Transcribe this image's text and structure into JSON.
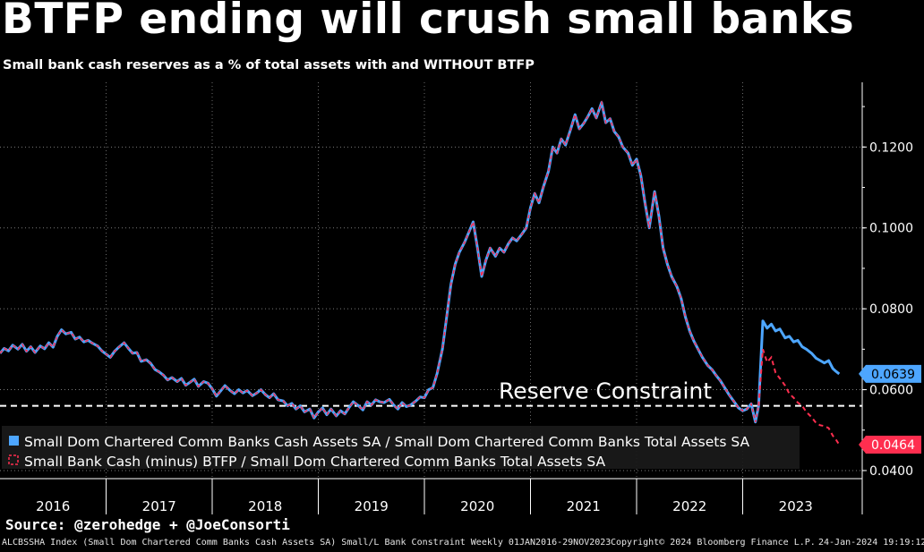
{
  "title": "BTFP ending will crush small banks",
  "subtitle": "Small bank cash reserves as a % of total assets with and WITHOUT BTFP",
  "source": "Source: @zerohedge + @JoeConsorti",
  "footer": {
    "description": "ALCBSSHA Index (Small Dom Chartered Comm Banks Cash Assets SA) Small/L Bank Constraint  Weekly 01JAN2016-29NOV2023",
    "copyright": "Copyright© 2024 Bloomberg Finance L.P.",
    "timestamp": "24-Jan-2024 19:19:12"
  },
  "chart_data": {
    "type": "line",
    "title": "BTFP ending will crush small banks",
    "x_ticks": [
      "2016",
      "2017",
      "2018",
      "2019",
      "2020",
      "2021",
      "2022",
      "2023"
    ],
    "xlim": [
      2016.0,
      2024.0
    ],
    "ylim": [
      0.038,
      0.136
    ],
    "y_ticks": [
      "0.0400",
      "0.0600",
      "0.0800",
      "0.1000",
      "0.1200"
    ],
    "grid": true,
    "legend_position": "bottom-left",
    "series": [
      {
        "name": "Small Dom Chartered Comm Banks Cash Assets SA / Small Dom Chartered Comm Banks Total Assets SA",
        "color": "#4da6ff",
        "style": "solid",
        "last_value_label": "0.0639",
        "points": [
          [
            2016.0,
            0.069
          ],
          [
            2016.04,
            0.0702
          ],
          [
            2016.08,
            0.0696
          ],
          [
            2016.12,
            0.071
          ],
          [
            2016.17,
            0.07
          ],
          [
            2016.21,
            0.0712
          ],
          [
            2016.25,
            0.0695
          ],
          [
            2016.29,
            0.0706
          ],
          [
            2016.33,
            0.0692
          ],
          [
            2016.38,
            0.0708
          ],
          [
            2016.42,
            0.0701
          ],
          [
            2016.46,
            0.0716
          ],
          [
            2016.5,
            0.0705
          ],
          [
            2016.54,
            0.0732
          ],
          [
            2016.58,
            0.0748
          ],
          [
            2016.62,
            0.0738
          ],
          [
            2016.67,
            0.0742
          ],
          [
            2016.71,
            0.0725
          ],
          [
            2016.75,
            0.073
          ],
          [
            2016.79,
            0.0718
          ],
          [
            2016.83,
            0.0722
          ],
          [
            2016.87,
            0.0715
          ],
          [
            2016.92,
            0.0708
          ],
          [
            2016.96,
            0.0696
          ],
          [
            2017.0,
            0.0688
          ],
          [
            2017.04,
            0.068
          ],
          [
            2017.08,
            0.0695
          ],
          [
            2017.12,
            0.0705
          ],
          [
            2017.17,
            0.0716
          ],
          [
            2017.21,
            0.0702
          ],
          [
            2017.25,
            0.069
          ],
          [
            2017.29,
            0.0692
          ],
          [
            2017.33,
            0.067
          ],
          [
            2017.38,
            0.0674
          ],
          [
            2017.42,
            0.0665
          ],
          [
            2017.46,
            0.065
          ],
          [
            2017.5,
            0.0644
          ],
          [
            2017.54,
            0.0636
          ],
          [
            2017.58,
            0.0624
          ],
          [
            2017.62,
            0.063
          ],
          [
            2017.67,
            0.062
          ],
          [
            2017.71,
            0.0628
          ],
          [
            2017.75,
            0.0611
          ],
          [
            2017.79,
            0.0618
          ],
          [
            2017.83,
            0.0626
          ],
          [
            2017.87,
            0.0608
          ],
          [
            2017.92,
            0.062
          ],
          [
            2017.96,
            0.0616
          ],
          [
            2018.0,
            0.0602
          ],
          [
            2018.04,
            0.0584
          ],
          [
            2018.08,
            0.0597
          ],
          [
            2018.12,
            0.061
          ],
          [
            2018.17,
            0.0598
          ],
          [
            2018.21,
            0.059
          ],
          [
            2018.25,
            0.06
          ],
          [
            2018.29,
            0.0592
          ],
          [
            2018.33,
            0.0598
          ],
          [
            2018.38,
            0.0585
          ],
          [
            2018.42,
            0.0592
          ],
          [
            2018.46,
            0.06
          ],
          [
            2018.5,
            0.0588
          ],
          [
            2018.54,
            0.058
          ],
          [
            2018.58,
            0.059
          ],
          [
            2018.62,
            0.0575
          ],
          [
            2018.67,
            0.0572
          ],
          [
            2018.71,
            0.056
          ],
          [
            2018.75,
            0.0566
          ],
          [
            2018.79,
            0.0552
          ],
          [
            2018.83,
            0.056
          ],
          [
            2018.87,
            0.0545
          ],
          [
            2018.92,
            0.0552
          ],
          [
            2018.96,
            0.053
          ],
          [
            2019.0,
            0.0545
          ],
          [
            2019.04,
            0.0555
          ],
          [
            2019.08,
            0.0538
          ],
          [
            2019.12,
            0.0552
          ],
          [
            2019.17,
            0.0535
          ],
          [
            2019.21,
            0.0548
          ],
          [
            2019.25,
            0.054
          ],
          [
            2019.29,
            0.0556
          ],
          [
            2019.33,
            0.057
          ],
          [
            2019.38,
            0.056
          ],
          [
            2019.42,
            0.055
          ],
          [
            2019.46,
            0.057
          ],
          [
            2019.5,
            0.0562
          ],
          [
            2019.54,
            0.0575
          ],
          [
            2019.58,
            0.057
          ],
          [
            2019.62,
            0.0568
          ],
          [
            2019.67,
            0.0576
          ],
          [
            2019.71,
            0.0562
          ],
          [
            2019.75,
            0.0552
          ],
          [
            2019.79,
            0.0568
          ],
          [
            2019.83,
            0.0558
          ],
          [
            2019.87,
            0.0562
          ],
          [
            2019.92,
            0.0572
          ],
          [
            2019.96,
            0.0582
          ],
          [
            2020.0,
            0.058
          ],
          [
            2020.04,
            0.06
          ],
          [
            2020.08,
            0.0605
          ],
          [
            2020.12,
            0.064
          ],
          [
            2020.17,
            0.07
          ],
          [
            2020.21,
            0.078
          ],
          [
            2020.25,
            0.086
          ],
          [
            2020.29,
            0.091
          ],
          [
            2020.33,
            0.094
          ],
          [
            2020.38,
            0.0965
          ],
          [
            2020.42,
            0.099
          ],
          [
            2020.46,
            0.1015
          ],
          [
            2020.5,
            0.095
          ],
          [
            2020.54,
            0.088
          ],
          [
            2020.58,
            0.092
          ],
          [
            2020.62,
            0.095
          ],
          [
            2020.67,
            0.093
          ],
          [
            2020.71,
            0.095
          ],
          [
            2020.75,
            0.094
          ],
          [
            2020.79,
            0.096
          ],
          [
            2020.83,
            0.0975
          ],
          [
            2020.87,
            0.0968
          ],
          [
            2020.92,
            0.0985
          ],
          [
            2020.96,
            0.1
          ],
          [
            2021.0,
            0.105
          ],
          [
            2021.04,
            0.1085
          ],
          [
            2021.08,
            0.1062
          ],
          [
            2021.12,
            0.11
          ],
          [
            2021.17,
            0.114
          ],
          [
            2021.21,
            0.12
          ],
          [
            2021.25,
            0.1185
          ],
          [
            2021.29,
            0.122
          ],
          [
            2021.33,
            0.1205
          ],
          [
            2021.38,
            0.1245
          ],
          [
            2021.42,
            0.128
          ],
          [
            2021.46,
            0.1245
          ],
          [
            2021.5,
            0.1258
          ],
          [
            2021.54,
            0.1275
          ],
          [
            2021.58,
            0.1295
          ],
          [
            2021.62,
            0.1272
          ],
          [
            2021.67,
            0.131
          ],
          [
            2021.71,
            0.126
          ],
          [
            2021.75,
            0.127
          ],
          [
            2021.79,
            0.1238
          ],
          [
            2021.83,
            0.1225
          ],
          [
            2021.87,
            0.12
          ],
          [
            2021.92,
            0.1185
          ],
          [
            2021.96,
            0.1155
          ],
          [
            2022.0,
            0.117
          ],
          [
            2022.04,
            0.113
          ],
          [
            2022.08,
            0.106
          ],
          [
            2022.12,
            0.1
          ],
          [
            2022.17,
            0.109
          ],
          [
            2022.21,
            0.103
          ],
          [
            2022.25,
            0.095
          ],
          [
            2022.29,
            0.091
          ],
          [
            2022.33,
            0.088
          ],
          [
            2022.38,
            0.0855
          ],
          [
            2022.42,
            0.0825
          ],
          [
            2022.46,
            0.078
          ],
          [
            2022.5,
            0.0745
          ],
          [
            2022.54,
            0.072
          ],
          [
            2022.58,
            0.07
          ],
          [
            2022.62,
            0.068
          ],
          [
            2022.67,
            0.066
          ],
          [
            2022.71,
            0.065
          ],
          [
            2022.75,
            0.0635
          ],
          [
            2022.79,
            0.0622
          ],
          [
            2022.83,
            0.0605
          ],
          [
            2022.87,
            0.0588
          ],
          [
            2022.92,
            0.057
          ],
          [
            2022.96,
            0.0555
          ],
          [
            2023.0,
            0.0548
          ],
          [
            2023.04,
            0.0552
          ],
          [
            2023.08,
            0.0565
          ],
          [
            2023.12,
            0.052
          ],
          [
            2023.15,
            0.056
          ],
          [
            2023.19,
            0.077
          ],
          [
            2023.23,
            0.0752
          ],
          [
            2023.27,
            0.0762
          ],
          [
            2023.31,
            0.0745
          ],
          [
            2023.35,
            0.075
          ],
          [
            2023.4,
            0.0728
          ],
          [
            2023.44,
            0.0732
          ],
          [
            2023.48,
            0.0718
          ],
          [
            2023.52,
            0.0722
          ],
          [
            2023.56,
            0.0706
          ],
          [
            2023.6,
            0.07
          ],
          [
            2023.65,
            0.069
          ],
          [
            2023.69,
            0.0678
          ],
          [
            2023.73,
            0.0672
          ],
          [
            2023.77,
            0.0666
          ],
          [
            2023.81,
            0.0672
          ],
          [
            2023.85,
            0.0652
          ],
          [
            2023.88,
            0.0645
          ],
          [
            2023.91,
            0.0639
          ]
        ]
      },
      {
        "name": "Small Bank Cash (minus) BTFP / Small Dom Chartered Comm Banks Total Assets SA",
        "color": "#ff2e4f",
        "style": "dashed",
        "last_value_label": "0.0464",
        "points": [
          [
            2023.19,
            0.07
          ],
          [
            2023.23,
            0.0668
          ],
          [
            2023.27,
            0.068
          ],
          [
            2023.31,
            0.0642
          ],
          [
            2023.35,
            0.0628
          ],
          [
            2023.4,
            0.061
          ],
          [
            2023.44,
            0.059
          ],
          [
            2023.48,
            0.058
          ],
          [
            2023.52,
            0.0568
          ],
          [
            2023.56,
            0.056
          ],
          [
            2023.6,
            0.0545
          ],
          [
            2023.65,
            0.0532
          ],
          [
            2023.69,
            0.0518
          ],
          [
            2023.73,
            0.0512
          ],
          [
            2023.77,
            0.051
          ],
          [
            2023.81,
            0.0505
          ],
          [
            2023.85,
            0.0486
          ],
          [
            2023.88,
            0.0476
          ],
          [
            2023.91,
            0.0464
          ]
        ]
      }
    ],
    "annotations": [
      {
        "text": "Reserve Constraint",
        "y": 0.056,
        "line_style": "dashed",
        "color": "#ffffff"
      }
    ]
  }
}
